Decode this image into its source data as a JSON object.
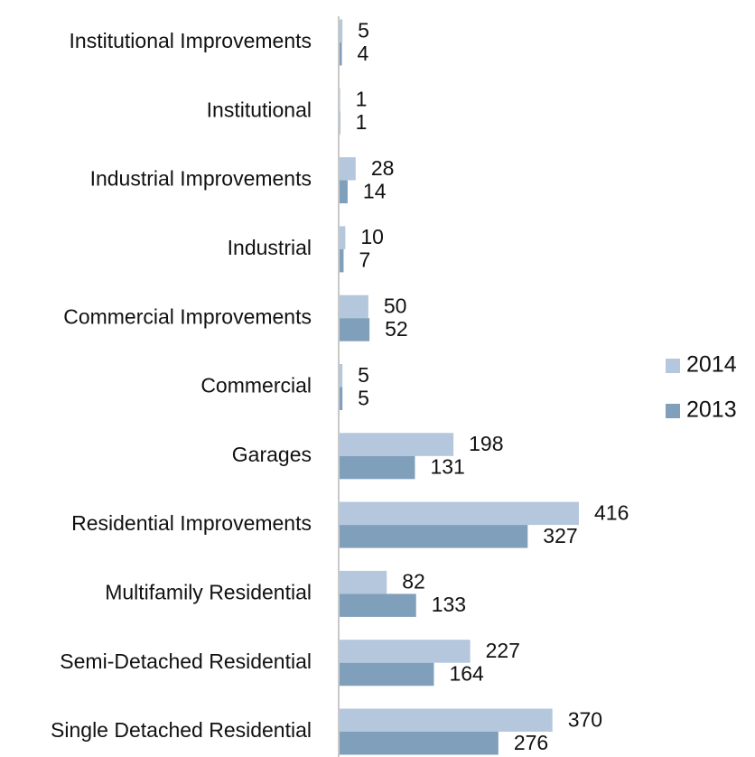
{
  "chart_data": {
    "type": "hbar",
    "categories": [
      "Institutional Improvements",
      "Institutional",
      "Industrial Improvements",
      "Industrial",
      "Commercial Improvements",
      "Commercial",
      "Garages",
      "Residential Improvements",
      "Multifamily Residential",
      "Semi-Detached Residential",
      "Single Detached Residential"
    ],
    "series": [
      {
        "name": "2014",
        "color": "#b4c7dc",
        "values": [
          5,
          1,
          28,
          10,
          50,
          5,
          198,
          416,
          82,
          227,
          370
        ]
      },
      {
        "name": "2013",
        "color": "#7f9fbb",
        "values": [
          4,
          1,
          14,
          7,
          52,
          5,
          131,
          327,
          133,
          164,
          276
        ]
      }
    ],
    "legend": "right"
  }
}
